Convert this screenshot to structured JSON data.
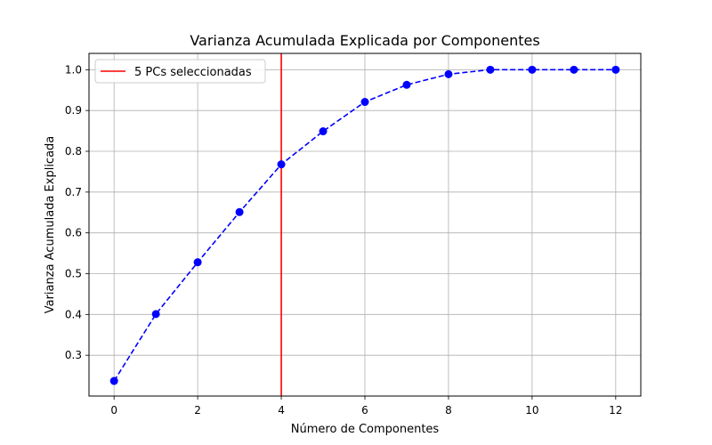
{
  "chart_data": {
    "type": "line",
    "title": "Varianza Acumulada Explicada por Componentes",
    "xlabel": "Número de Componentes",
    "ylabel": "Varianza Acumulada Explicada",
    "xlim": [
      -0.6,
      12.6
    ],
    "ylim": [
      0.2,
      1.04
    ],
    "xticks": [
      0,
      2,
      4,
      6,
      8,
      10,
      12
    ],
    "yticks": [
      0.3,
      0.4,
      0.5,
      0.6,
      0.7,
      0.8,
      0.9,
      1.0
    ],
    "x": [
      0,
      1,
      2,
      3,
      4,
      5,
      6,
      7,
      8,
      9,
      10,
      11,
      12
    ],
    "series": [
      {
        "values": [
          0.237,
          0.401,
          0.528,
          0.651,
          0.768,
          0.849,
          0.921,
          0.963,
          0.989,
          1.0,
          1.0,
          1.0,
          1.0
        ],
        "color": "#0000ff",
        "line_style": "dashed",
        "marker": "circle"
      }
    ],
    "vline": {
      "x": 4,
      "color": "#ff0000",
      "label": "5 PCs seleccionadas"
    },
    "legend_position": "top-left",
    "grid": true
  }
}
